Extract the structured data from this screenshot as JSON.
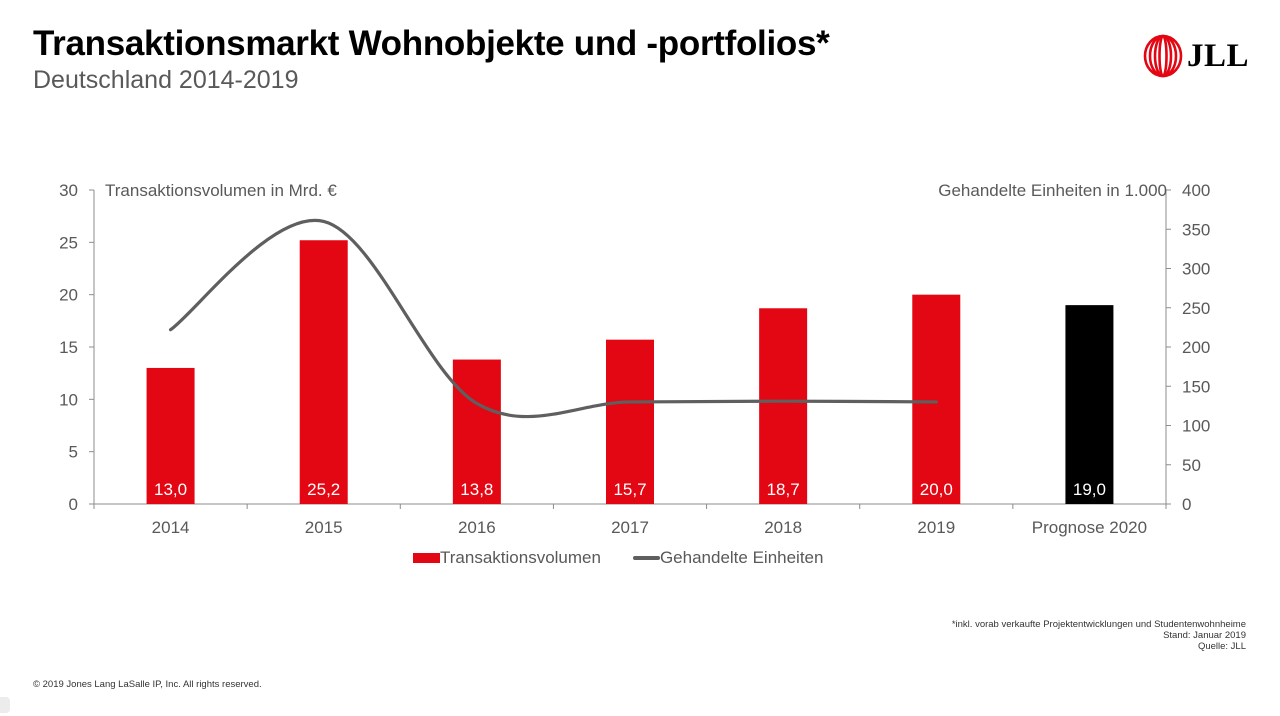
{
  "header": {
    "title": "Transaktionsmarkt Wohnobjekte und -portfolios*",
    "subtitle": "Deutschland 2014-2019",
    "logo_text": "JLL",
    "logo_icon": "jll-rings-icon"
  },
  "colors": {
    "bar": "#e30613",
    "forecast_bar": "#000000",
    "line": "#5f5f5f",
    "axis": "#8c8c8c",
    "text": "#595959"
  },
  "chart_data": {
    "type": "bar",
    "title": "Transaktionsmarkt Wohnobjekte und -portfolios*",
    "subtitle": "Deutschland 2014-2019",
    "categories": [
      "2014",
      "2015",
      "2016",
      "2017",
      "2018",
      "2019",
      "Prognose 2020"
    ],
    "ylabel": "Transaktionsvolumen in Mrd. €",
    "y2label": "Gehandelte Einheiten in 1.000",
    "ylim": [
      0,
      30
    ],
    "yticks": [
      0,
      5,
      10,
      15,
      20,
      25,
      30
    ],
    "y2lim": [
      0,
      400
    ],
    "y2ticks": [
      0,
      50,
      100,
      150,
      200,
      250,
      300,
      350,
      400
    ],
    "grid": false,
    "legend_position": "bottom",
    "series": [
      {
        "name": "Transaktionsvolumen",
        "type": "bar",
        "axis": "left",
        "values": [
          13.0,
          25.2,
          13.8,
          15.7,
          18.7,
          20.0,
          19.0
        ],
        "labels": [
          "13,0",
          "25,2",
          "13,8",
          "15,7",
          "18,7",
          "20,0",
          "19,0"
        ],
        "forecast_index": 6
      },
      {
        "name": "Gehandelte Einheiten",
        "type": "line",
        "smooth": true,
        "axis": "right",
        "values": [
          222,
          360,
          128,
          130,
          131,
          130,
          null
        ]
      }
    ]
  },
  "footer": {
    "notes": [
      "*inkl. vorab verkaufte Projektentwicklungen und Studentenwohnheime",
      "Stand: Januar 2019",
      "Quelle: JLL"
    ],
    "copyright": "© 2019 Jones Lang LaSalle IP, Inc. All rights reserved."
  }
}
